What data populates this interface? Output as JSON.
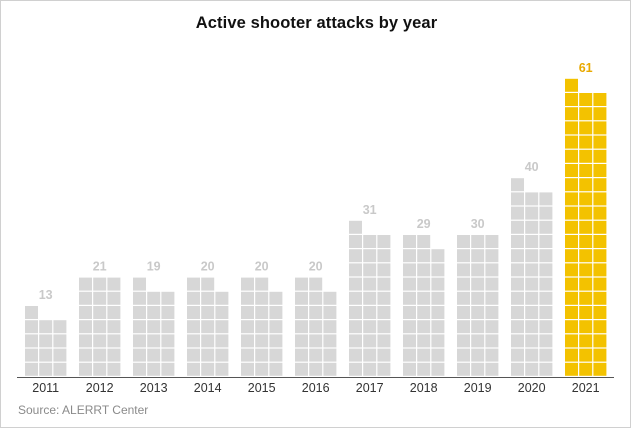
{
  "chart_data": {
    "type": "bar",
    "style": "waffle-grid columns (each cell = one attack)",
    "title": "Active shooter attacks by year",
    "categories": [
      "2011",
      "2012",
      "2013",
      "2014",
      "2015",
      "2016",
      "2017",
      "2018",
      "2019",
      "2020",
      "2021"
    ],
    "values": [
      13,
      21,
      19,
      20,
      20,
      20,
      31,
      29,
      30,
      40,
      61
    ],
    "highlight_category": "2021",
    "xlabel": "",
    "ylabel": "",
    "grid": false,
    "source": "Source: ALERRT Center"
  },
  "colors": {
    "bar": "#d7d7d7",
    "highlight": "#f3c200",
    "value_label": "#c9c9c9",
    "highlight_label": "#e9a900",
    "year_label": "#333333",
    "baseline": "#555555"
  }
}
